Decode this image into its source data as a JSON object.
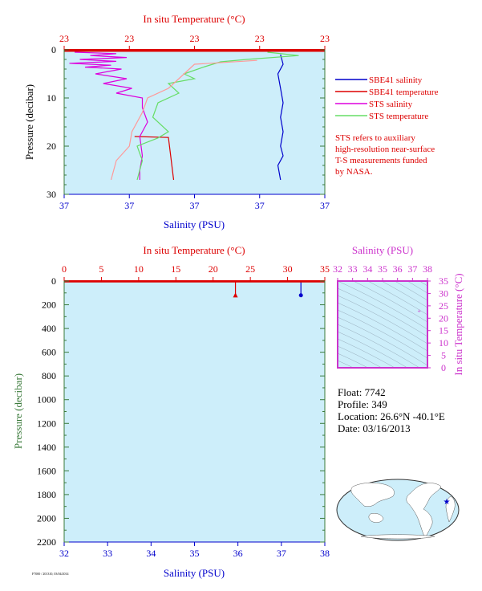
{
  "colors": {
    "plot_bg": "#cdeefa",
    "salinity": "#0000cc",
    "temperature": "#dd0000",
    "sts_salinity": "#dd00dd",
    "sts_temperature": "#66dd66",
    "pressure_axis": "#3a7a3a",
    "ts_diagram": "#cc33cc"
  },
  "chart_data": [
    {
      "type": "line",
      "name": "near-surface profile",
      "title": "",
      "top_axis_label": "In situ Temperature (°C)",
      "top_tick_labels": [
        "23",
        "23",
        "23",
        "23",
        "23"
      ],
      "xlabel": "Salinity (PSU)",
      "x_tick_labels": [
        "37",
        "37",
        "37",
        "37",
        "37"
      ],
      "ylabel": "Pressure (decibar)",
      "y_ticks": [
        0,
        10,
        20,
        30
      ],
      "ylim": [
        0,
        30
      ],
      "grid": false,
      "legend_position": "right",
      "legend": [
        {
          "label": "SBE41 salinity",
          "color_key": "salinity"
        },
        {
          "label": "SBE41 temperature",
          "color_key": "temperature"
        },
        {
          "label": "STS salinity",
          "color_key": "sts_salinity"
        },
        {
          "label": "STS temperature",
          "color_key": "sts_temperature"
        }
      ],
      "note": [
        "STS refers to auxiliary",
        "high-resolution near-surface",
        "T-S measurements funded",
        "by NASA."
      ],
      "xlim": [
        0,
        1
      ],
      "series": [
        {
          "key": "sbe41_salinity",
          "color_key": "salinity",
          "points": [
            [
              0.83,
              1
            ],
            [
              0.84,
              3
            ],
            [
              0.82,
              5
            ],
            [
              0.83,
              8
            ],
            [
              0.84,
              11
            ],
            [
              0.83,
              14
            ],
            [
              0.84,
              17
            ],
            [
              0.83,
              20
            ],
            [
              0.84,
              22
            ],
            [
              0.82,
              24
            ],
            [
              0.83,
              27
            ]
          ]
        },
        {
          "key": "sbe41_temperature",
          "color_key": "temperature",
          "points": [
            [
              0.27,
              18
            ],
            [
              0.4,
              18.2
            ],
            [
              0.42,
              27
            ]
          ]
        },
        {
          "key": "sts_salinity",
          "color_key": "sts_salinity",
          "points": [
            [
              0.04,
              0.5
            ],
            [
              0.2,
              0.8
            ],
            [
              0.1,
              1.2
            ],
            [
              0.24,
              1.6
            ],
            [
              0.06,
              2
            ],
            [
              0.2,
              2.4
            ],
            [
              0.02,
              2.8
            ],
            [
              0.18,
              3.2
            ],
            [
              0.08,
              3.6
            ],
            [
              0.22,
              4
            ],
            [
              0.12,
              5
            ],
            [
              0.24,
              6
            ],
            [
              0.15,
              7
            ],
            [
              0.26,
              8
            ],
            [
              0.2,
              9
            ],
            [
              0.3,
              10
            ],
            [
              0.3,
              12
            ],
            [
              0.32,
              15
            ],
            [
              0.29,
              18
            ],
            [
              0.3,
              22
            ],
            [
              0.29,
              25
            ],
            [
              0.29,
              27
            ]
          ]
        },
        {
          "key": "sts_temperature",
          "color_key": "sts_temperature",
          "points": [
            [
              0.78,
              0.5
            ],
            [
              0.9,
              1.2
            ],
            [
              0.7,
              2
            ],
            [
              0.6,
              2.5
            ],
            [
              0.54,
              3.5
            ],
            [
              0.46,
              5
            ],
            [
              0.5,
              6
            ],
            [
              0.4,
              7
            ],
            [
              0.44,
              9
            ],
            [
              0.36,
              11
            ],
            [
              0.34,
              14
            ],
            [
              0.4,
              17
            ],
            [
              0.36,
              18.3
            ],
            [
              0.28,
              20
            ],
            [
              0.3,
              23
            ],
            [
              0.28,
              27
            ]
          ]
        },
        {
          "key": "sts_temperature_alt",
          "color_key": "temperature_light",
          "points": [
            [
              0.74,
              2.2
            ],
            [
              0.5,
              3
            ],
            [
              0.44,
              6
            ],
            [
              0.4,
              8
            ],
            [
              0.32,
              10
            ],
            [
              0.3,
              13
            ],
            [
              0.26,
              17
            ],
            [
              0.25,
              20
            ],
            [
              0.2,
              23
            ],
            [
              0.18,
              27
            ]
          ]
        }
      ]
    },
    {
      "type": "line",
      "name": "full-depth profile",
      "title": "",
      "top_axis_label": "In situ Temperature (°C)",
      "top_ticks": [
        0,
        5,
        10,
        15,
        20,
        25,
        30,
        35
      ],
      "top_lim": [
        0,
        35
      ],
      "xlabel": "Salinity (PSU)",
      "x_ticks": [
        32,
        33,
        34,
        35,
        36,
        37,
        38
      ],
      "xlim": [
        32,
        38
      ],
      "ylabel": "Pressure (decibar)",
      "y_ticks": [
        0,
        200,
        400,
        600,
        800,
        1000,
        1200,
        1400,
        1600,
        1800,
        2000,
        2200
      ],
      "ylim": [
        0,
        2200
      ],
      "grid": false,
      "series": [
        {
          "key": "salinity",
          "color_key": "salinity",
          "axis": "bottom",
          "points": [
            [
              37.45,
              0
            ],
            [
              37.45,
              120
            ]
          ]
        },
        {
          "key": "temperature",
          "color_key": "temperature",
          "axis": "top",
          "points": [
            [
              23.0,
              0
            ],
            [
              23.0,
              118
            ]
          ]
        }
      ]
    },
    {
      "type": "scatter",
      "name": "T-S diagram",
      "title": "",
      "top_axis_label": "Salinity (PSU)",
      "x_ticks": [
        32,
        33,
        34,
        35,
        36,
        37,
        38
      ],
      "xlim": [
        32,
        38
      ],
      "ylabel": "In situ Temperature (°C)",
      "y_ticks": [
        0,
        5,
        10,
        15,
        20,
        25,
        30,
        35
      ],
      "ylim": [
        0,
        35
      ],
      "grid": false,
      "points": [
        [
          37.45,
          23.0
        ]
      ]
    }
  ],
  "float_info": {
    "float": "Float: 7742",
    "profile": "Profile: 349",
    "location": "Location: 26.6°N -40.1°E",
    "date": "Date: 03/16/2013"
  },
  "footer_code": "F7000 / 201310, 03/04/2014"
}
